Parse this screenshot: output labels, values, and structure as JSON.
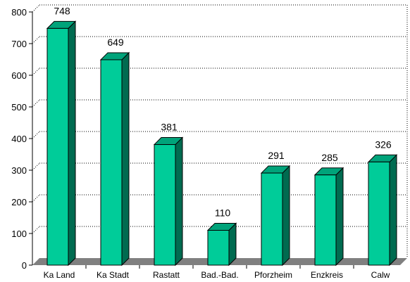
{
  "chart_data": {
    "type": "bar",
    "style": "3d-column",
    "categories": [
      "Ka Land",
      "Ka Stadt",
      "Rastatt",
      "Bad.-Bad.",
      "Pforzheim",
      "Enzkreis",
      "Calw"
    ],
    "values": [
      748,
      649,
      381,
      110,
      291,
      285,
      326
    ],
    "data_labels": [
      "748",
      "649",
      "381",
      "110",
      "291",
      "285",
      "326"
    ],
    "title": "",
    "xlabel": "",
    "ylabel": "",
    "ylim": [
      0,
      800
    ],
    "yticks": [
      0,
      100,
      200,
      300,
      400,
      500,
      600,
      700,
      800
    ],
    "ytick_labels": [
      "0",
      "100",
      "200",
      "300",
      "400",
      "500",
      "600",
      "700",
      "800"
    ],
    "grid": "horizontal dotted",
    "legend": "none",
    "colors": {
      "bar_front": "#00cc99",
      "bar_side": "#006b50",
      "bar_top": "#00a37a",
      "floor": "#808080",
      "grid": "#000000"
    }
  }
}
